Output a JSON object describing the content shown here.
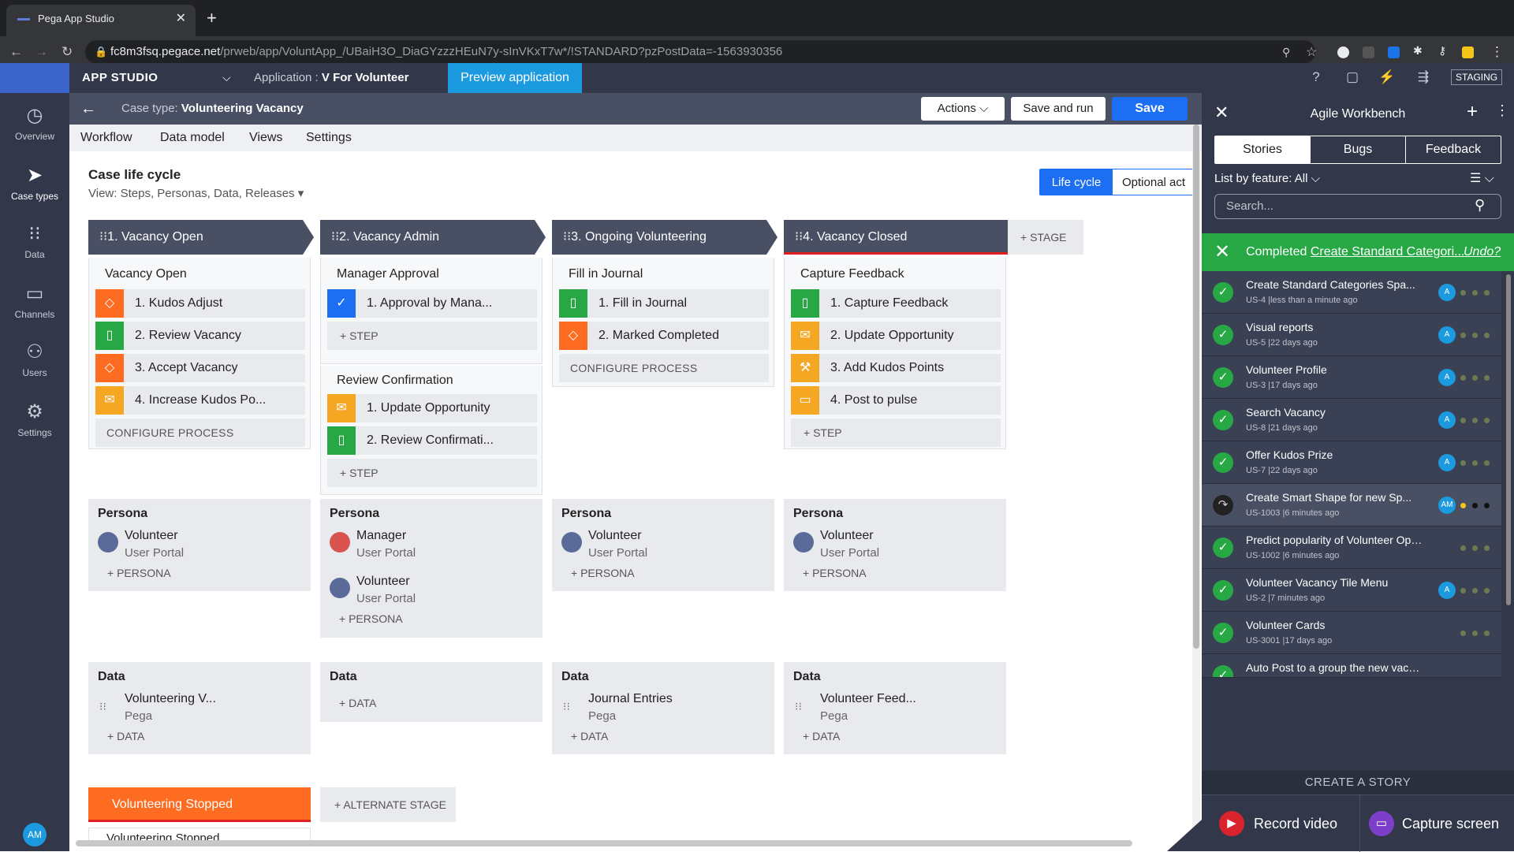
{
  "browser": {
    "tab_title": "Pega App Studio",
    "url_host": "fc8m3fsq.pegace.net",
    "url_path": "/prweb/app/VoluntApp_/UBaiH3O_DiaGYzzzHEuN7y-sInVKxT7w*/!STANDARD?pzPostData=-1563930356"
  },
  "header": {
    "app_studio": "APP STUDIO",
    "application_label": "Application :",
    "application_name": "V For Volunteer",
    "preview_label": "Preview application",
    "staging": "STAGING"
  },
  "leftnav": [
    {
      "icon": "◷",
      "label": "Overview"
    },
    {
      "icon": "➤",
      "label": "Case types"
    },
    {
      "icon": "⁝⁝",
      "label": "Data"
    },
    {
      "icon": "▭",
      "label": "Channels"
    },
    {
      "icon": "⚇",
      "label": "Users"
    },
    {
      "icon": "⚙",
      "label": "Settings"
    }
  ],
  "user_initials": "AM",
  "case": {
    "type_label": "Case type:",
    "type_name": "Volunteering Vacancy",
    "actions": "Actions",
    "save_and_run": "Save and run",
    "save": "Save"
  },
  "subtabs": [
    "Workflow",
    "Data model",
    "Views",
    "Settings"
  ],
  "lifecycle": {
    "title": "Case life cycle",
    "view_label": "View:",
    "view_value": "Steps, Personas, Data, Releases",
    "toggle_on": "Life cycle",
    "toggle_off": "Optional act",
    "add_stage": "STAGE",
    "stages": [
      "1.  Vacancy Open",
      "2.  Vacancy Admin",
      "3.  Ongoing Volunteering",
      "4.  Vacancy Closed"
    ]
  },
  "processes": {
    "s1": {
      "title": "Vacancy Open",
      "steps": [
        "1.  Kudos Adjust",
        "2.  Review Vacancy",
        "3.  Accept Vacancy",
        "4.  Increase Kudos Po..."
      ],
      "footer": "CONFIGURE PROCESS"
    },
    "s2a": {
      "title": "Manager Approval",
      "steps": [
        "1.  Approval by Mana..."
      ],
      "footer": "STEP"
    },
    "s2b": {
      "title": "Review Confirmation",
      "steps": [
        "1.  Update Opportunity",
        "2.  Review Confirmati..."
      ],
      "footer": "STEP"
    },
    "s3": {
      "title": "Fill in Journal",
      "steps": [
        "1.  Fill in Journal",
        "2.  Marked Completed"
      ],
      "footer": "CONFIGURE PROCESS"
    },
    "s4": {
      "title": "Capture Feedback",
      "steps": [
        "1.  Capture Feedback",
        "2.  Update Opportunity",
        "3.  Add Kudos Points",
        "4.  Post to pulse"
      ],
      "footer": "STEP"
    }
  },
  "persona_label": "Persona",
  "persona_add": "PERSONA",
  "personas": {
    "s1": [
      {
        "name": "Volunteer",
        "portal": "User Portal"
      }
    ],
    "s2": [
      {
        "name": "Manager",
        "portal": "User Portal"
      },
      {
        "name": "Volunteer",
        "portal": "User Portal"
      }
    ],
    "s3": [
      {
        "name": "Volunteer",
        "portal": "User Portal"
      }
    ],
    "s4": [
      {
        "name": "Volunteer",
        "portal": "User Portal"
      }
    ]
  },
  "data_label": "Data",
  "data_add": "DATA",
  "data_items": {
    "s1": {
      "name": "Volunteering V...",
      "source": "Pega"
    },
    "s3": {
      "name": "Journal Entries",
      "source": "Pega"
    },
    "s4": {
      "name": "Volunteer Feed...",
      "source": "Pega"
    }
  },
  "alternate": {
    "stage": "Volunteering Stopped",
    "add": "ALTERNATE STAGE",
    "sub": "Volunteering Stopped"
  },
  "workbench": {
    "title": "Agile Workbench",
    "tabs": [
      "Stories",
      "Bugs",
      "Feedback"
    ],
    "list_by_label": "List by feature:",
    "list_by_value": "All",
    "search_placeholder": "Search...",
    "completed_label": "Completed",
    "completed_link": "Create Standard Categori...",
    "undo": "Undo?",
    "stories": [
      {
        "title": "Create Standard Categories Spa...",
        "meta": "US-4 |less than a minute ago",
        "avatar": "A"
      },
      {
        "title": "Visual reports",
        "meta": "US-5 |22 days ago",
        "avatar": "A"
      },
      {
        "title": "Volunteer Profile",
        "meta": "US-3 |17 days ago",
        "avatar": "A"
      },
      {
        "title": "Search Vacancy",
        "meta": "US-8 |21 days ago",
        "avatar": "A"
      },
      {
        "title": "Offer Kudos Prize",
        "meta": "US-7 |22 days ago",
        "avatar": "A"
      },
      {
        "title": "Create Smart Shape for new Sp...",
        "meta": "US-1003 |6 minutes ago",
        "avatar": "AM"
      },
      {
        "title": "Predict popularity of Volunteer Oppo...",
        "meta": "US-1002 |6 minutes ago",
        "avatar": ""
      },
      {
        "title": "Volunteer Vacancy Tile Menu",
        "meta": "US-2 |7 minutes ago",
        "avatar": "A"
      },
      {
        "title": "Volunteer Cards",
        "meta": "US-3001 |17 days ago",
        "avatar": ""
      },
      {
        "title": "Auto Post to a group the new vacanc...",
        "meta": "",
        "avatar": ""
      }
    ],
    "create_story": "CREATE A STORY",
    "record_video": "Record video",
    "capture_screen": "Capture screen"
  },
  "colors": {
    "header": "#32384a",
    "accent": "#1c6ef2",
    "preview": "#1c9ae0",
    "orange": "#fd6c21",
    "green": "#27a844",
    "yellow": "#f5a623"
  }
}
